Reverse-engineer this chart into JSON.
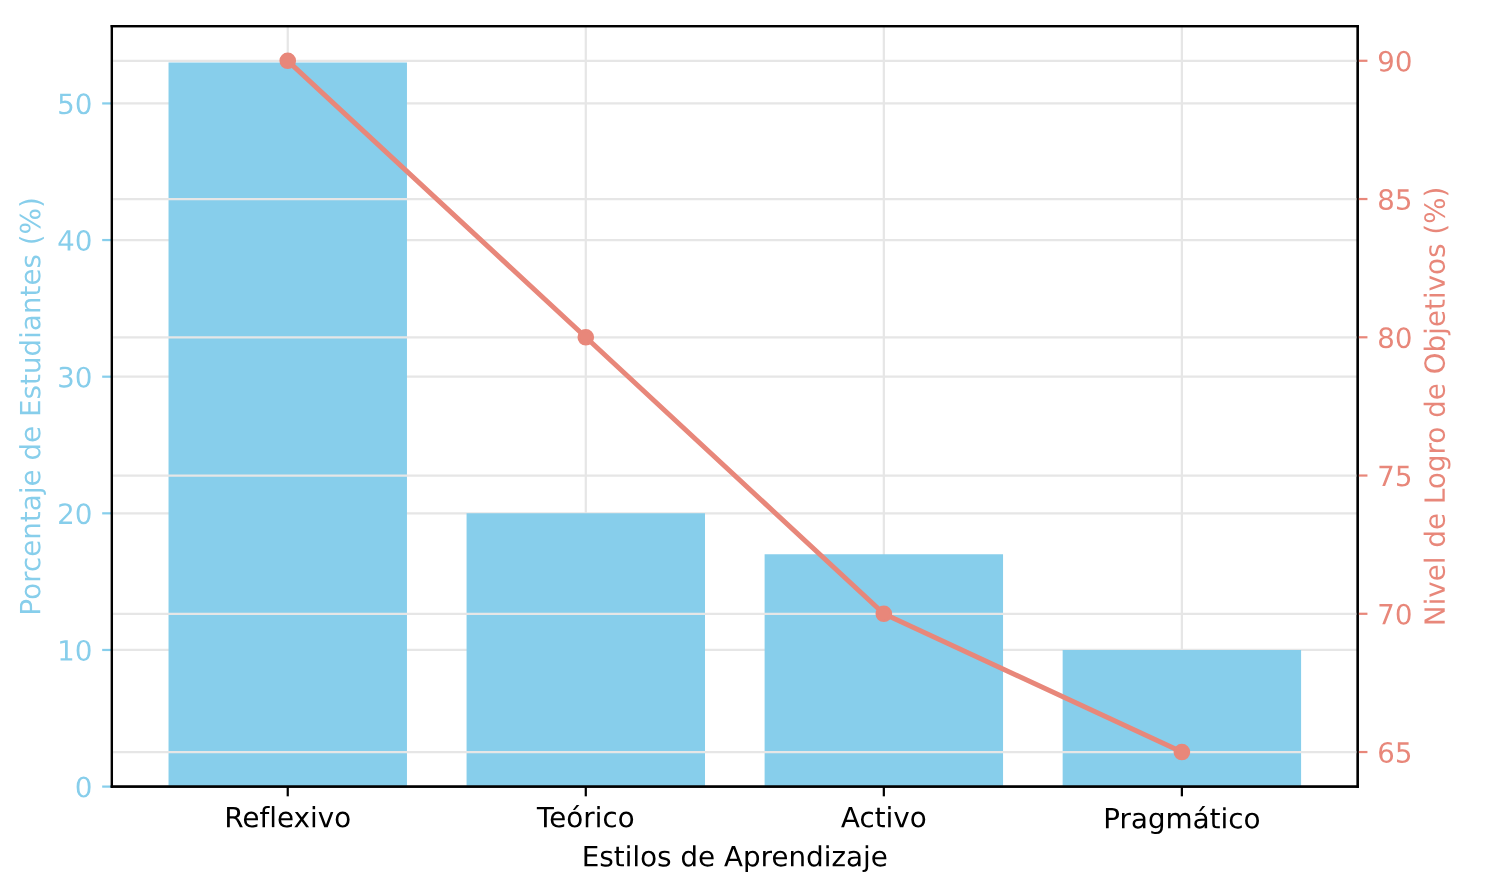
{
  "chart_data": {
    "type": "bar",
    "categories": [
      "Reflexivo",
      "Teórico",
      "Activo",
      "Pragmático"
    ],
    "xlabel": "Estilos de Aprendizaje",
    "ylabel": "Porcentaje de Estudiantes (%)",
    "y2label": "Nivel de Logro de Objetivos (%)",
    "series": [
      {
        "color": "#87ceeb",
        "values": [
          53,
          20,
          17,
          10
        ]
      },
      {
        "type": "line",
        "axis": "y2",
        "color": "#e8877a",
        "values": [
          90,
          80,
          70,
          65
        ],
        "marker": "circle"
      }
    ],
    "ylim": [
      0,
      55.65
    ],
    "yticks": [
      0,
      10,
      20,
      30,
      40,
      50
    ],
    "y2lim": [
      63.75,
      91.25
    ],
    "y2ticks": [
      65,
      70,
      75,
      80,
      85,
      90
    ],
    "grid": true
  }
}
